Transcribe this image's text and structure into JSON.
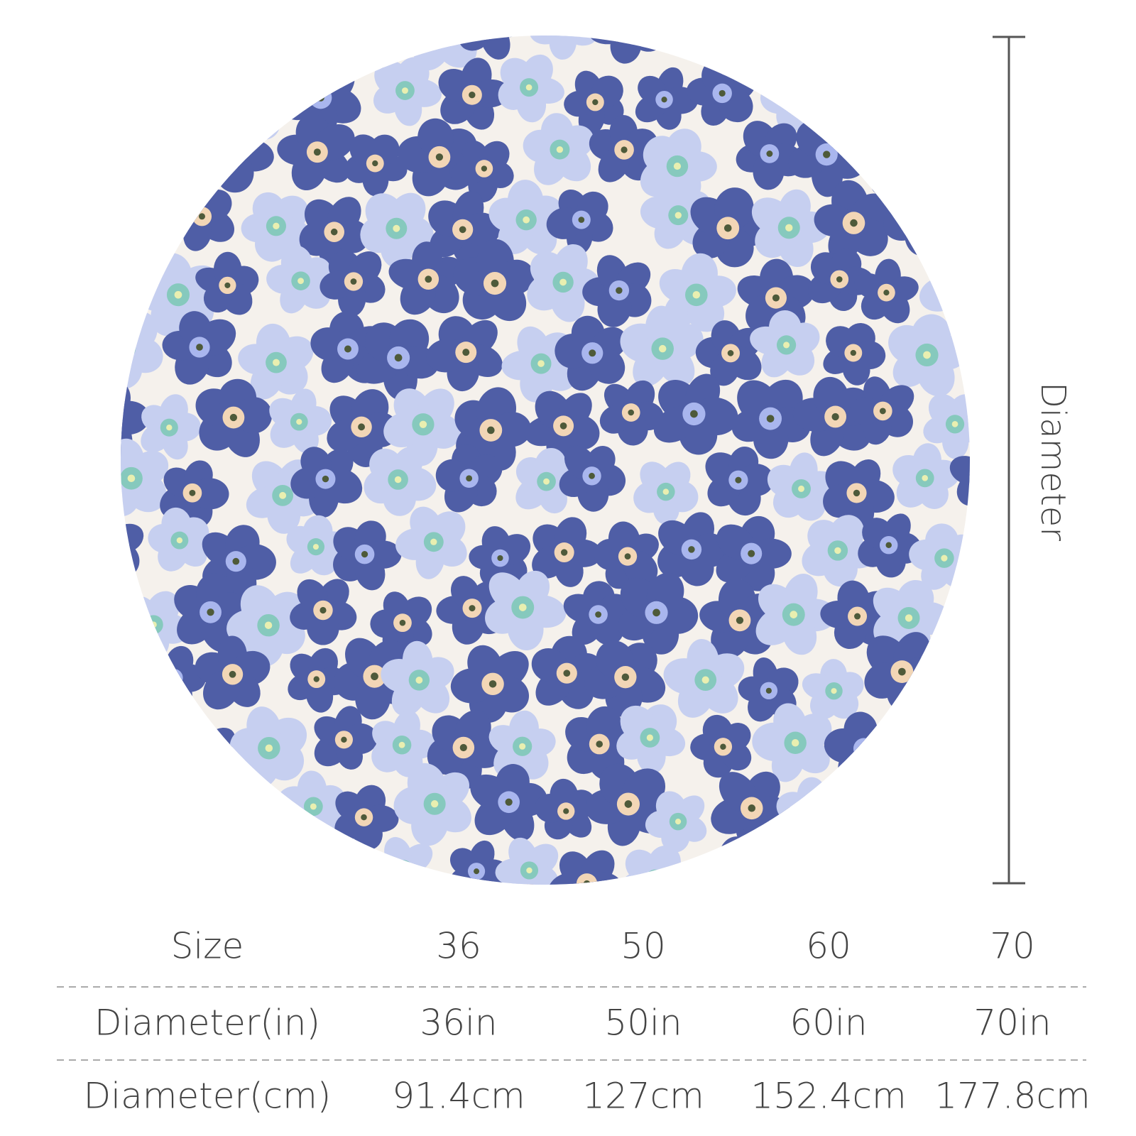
{
  "measure_label": "Diameter",
  "table": {
    "rows": [
      [
        "Size",
        "36",
        "50",
        "60",
        "70"
      ],
      [
        "Diameter(in)",
        "36in",
        "50in",
        "60in",
        "70in"
      ],
      [
        "Diameter(cm)",
        "91.4cm",
        "127cm",
        "152.4cm",
        "177.8cm"
      ]
    ]
  }
}
